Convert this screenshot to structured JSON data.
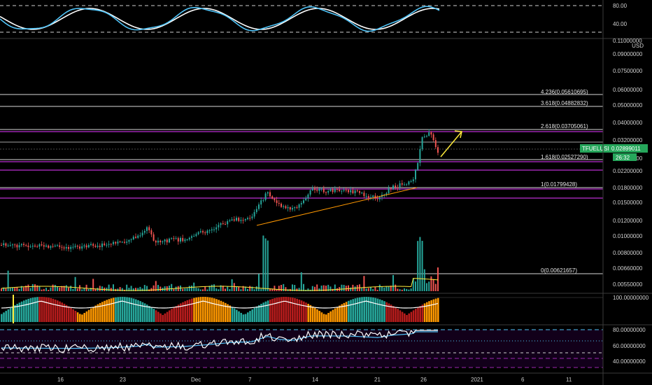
{
  "colors": {
    "background": "#000000",
    "up": "#26a69a",
    "down": "#ef5350",
    "fib_line_gray": "#d9d9d9",
    "fib_line_purple": "#9c27b0",
    "trendline": "#ff9800",
    "arrow": "#ffeb3b",
    "stoch_line": "#4fc3f7",
    "price_badge": "#26a65b",
    "ma_yellow": "#ffeb3b"
  },
  "currency_label": "USD",
  "ticker": {
    "symbol": "TFUELUSD",
    "price": "0.02899011",
    "countdown": "26:32"
  },
  "top_panel": {
    "levels": [
      "80.00",
      "40.00"
    ]
  },
  "price_axis": [
    "0.11000000",
    "0.09000000",
    "0.07500000",
    "0.06000000",
    "0.05000000",
    "0.04000000",
    "0.03200000",
    "0.02600000",
    "0.02200000",
    "0.01800000",
    "0.01500000",
    "0.01200000",
    "0.01000000",
    "0.00800000",
    "0.00660000",
    "0.00550000"
  ],
  "fib_levels": [
    {
      "label": "4.236(0.05610695)"
    },
    {
      "label": "3.618(0.04882832)"
    },
    {
      "label": "2.618(0.03705061)"
    },
    {
      "label": "1.618(0.02527290)"
    },
    {
      "label": "1(0.01799428)"
    },
    {
      "label": "0(0.00621657)"
    }
  ],
  "osc_panel": {
    "label": "100.00000000"
  },
  "rsi_panel": {
    "labels": [
      "80.00000000",
      "60.00000000",
      "40.00000000"
    ]
  },
  "date_axis": [
    "16",
    "23",
    "Dec",
    "7",
    "14",
    "21",
    "26",
    "2021",
    "6",
    "11"
  ],
  "chart_data": {
    "type": "candlestick",
    "symbol": "TFUELUSD",
    "currency": "USD",
    "x_ticks": [
      "16",
      "23",
      "Dec",
      "7",
      "14",
      "21",
      "26",
      "2021",
      "6",
      "11"
    ],
    "fibonacci_levels": [
      {
        "ratio": 4.236,
        "price": 0.05610695
      },
      {
        "ratio": 3.618,
        "price": 0.04882832
      },
      {
        "ratio": 2.618,
        "price": 0.03705061
      },
      {
        "ratio": 1.618,
        "price": 0.0252729
      },
      {
        "ratio": 1,
        "price": 0.01799428
      },
      {
        "ratio": 0,
        "price": 0.00621657
      }
    ],
    "last_price": 0.02899011
  }
}
